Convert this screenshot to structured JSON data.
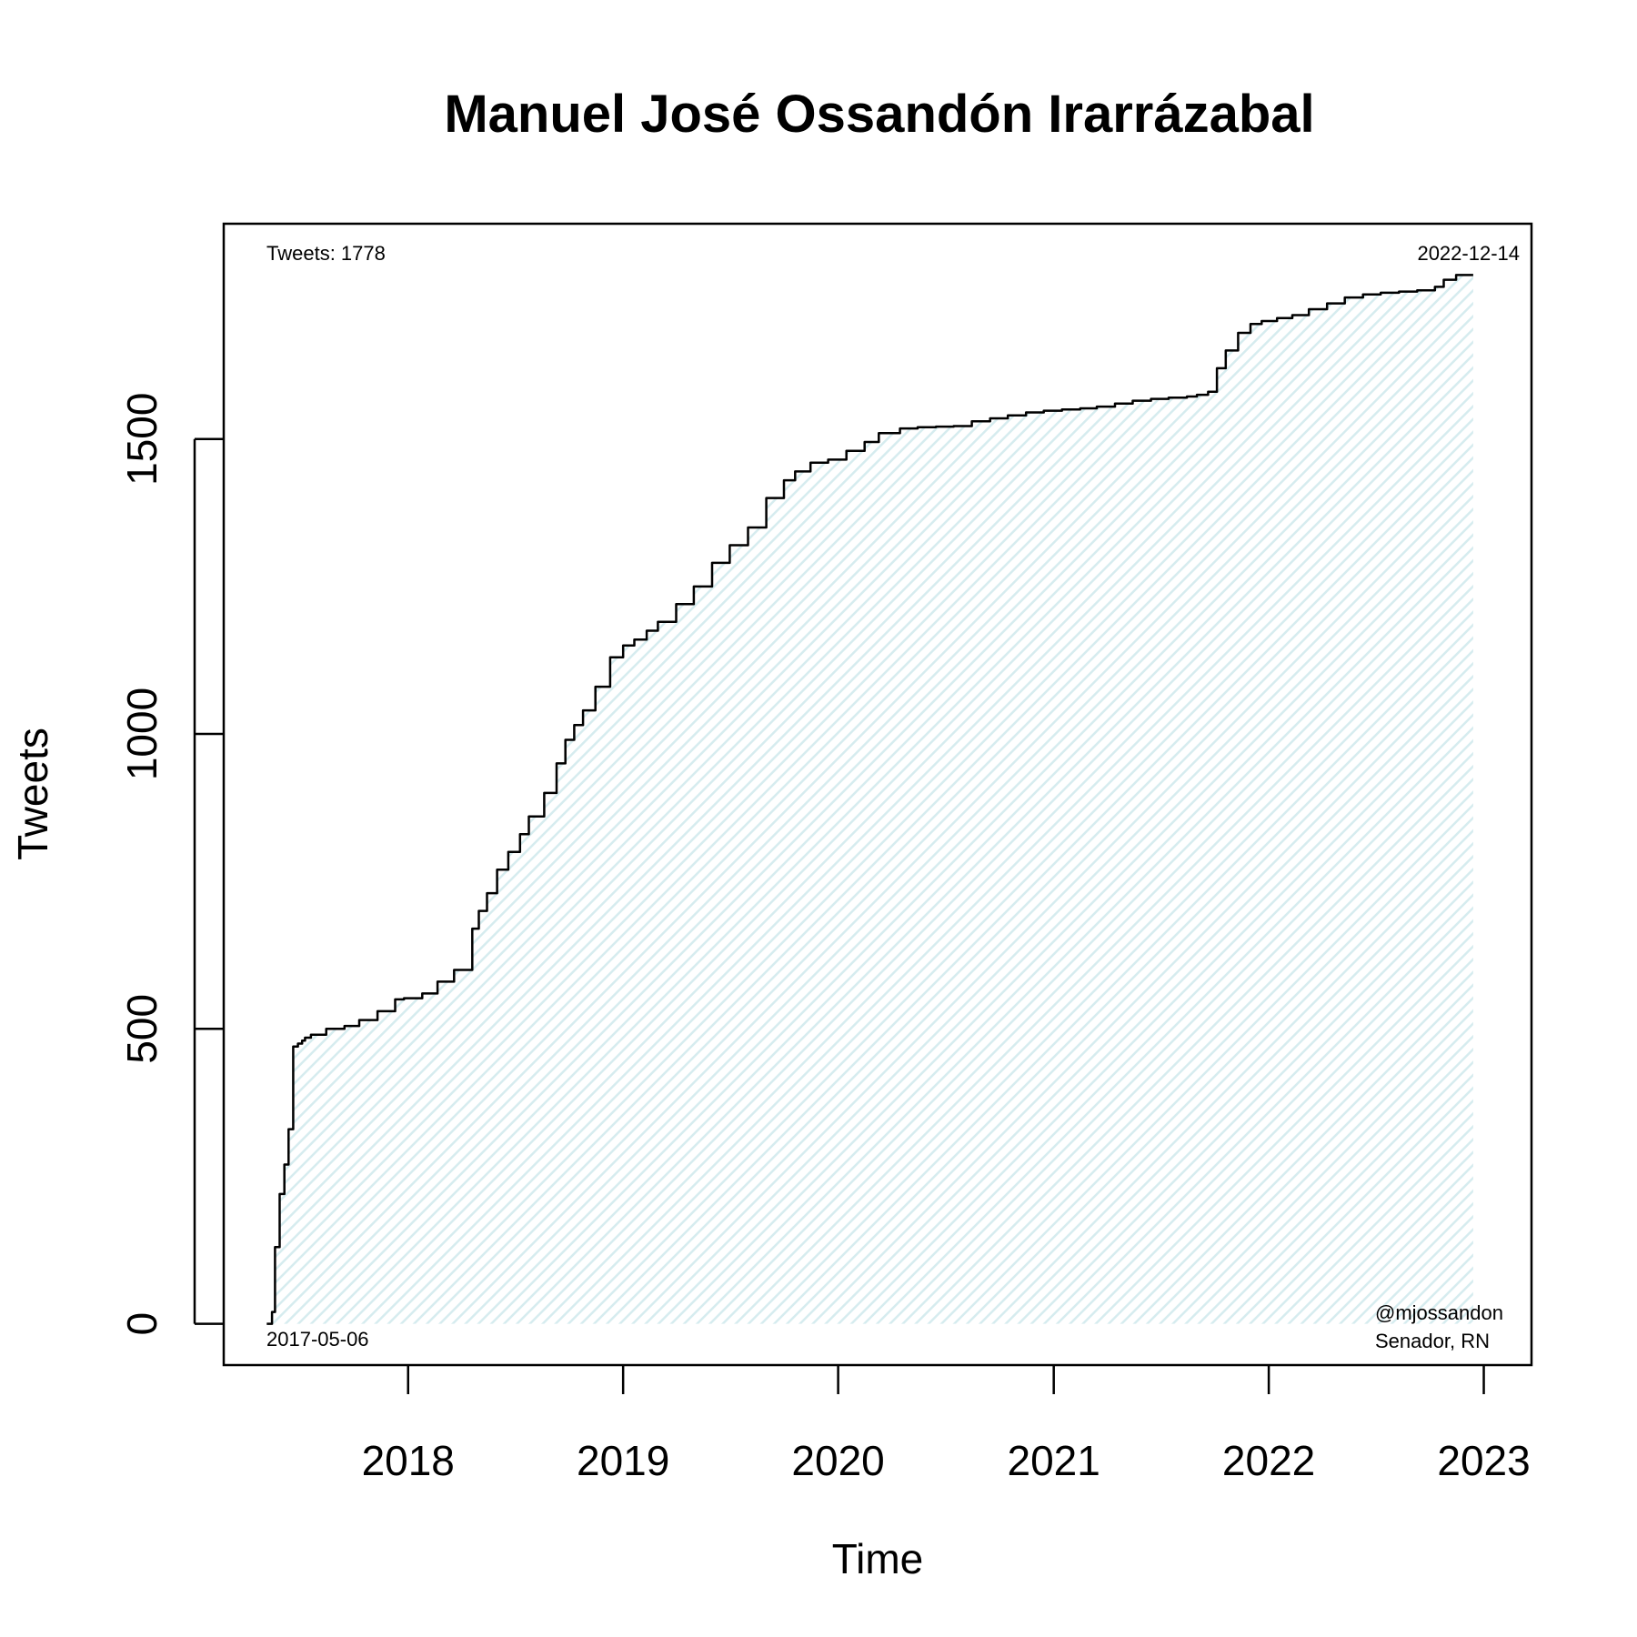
{
  "chart_data": {
    "type": "area",
    "title": "Manuel José Ossandón Irarrázabal",
    "xlabel": "Time",
    "ylabel": "Tweets",
    "xlim": [
      "2017-02-22",
      "2023-03-23"
    ],
    "ylim": [
      -70,
      1865
    ],
    "x_ticks": [
      "2018-01-01",
      "2019-01-01",
      "2020-01-01",
      "2021-01-01",
      "2022-01-01",
      "2023-01-01"
    ],
    "x_tick_labels": [
      "2018",
      "2019",
      "2020",
      "2021",
      "2022",
      "2023"
    ],
    "y_ticks": [
      0,
      500,
      1000,
      1500
    ],
    "y_tick_labels": [
      "0",
      "500",
      "1000",
      "1500"
    ],
    "annotations": {
      "total": "Tweets: 1778",
      "start_date": "2017-05-06",
      "end_date": "2022-12-14",
      "handle": "@mjossandon",
      "affiliation": "Senador, RN"
    },
    "colors": {
      "line": "#000000",
      "fill": "#e6f3f5"
    },
    "grid": false,
    "series": [
      {
        "x": [
          "2017-05-06",
          "2017-05-15",
          "2017-05-20",
          "2017-05-28",
          "2017-06-05",
          "2017-06-12",
          "2017-06-20",
          "2017-06-28",
          "2017-07-05",
          "2017-07-10",
          "2017-07-20",
          "2017-08-15",
          "2017-09-15",
          "2017-10-10",
          "2017-11-10",
          "2017-12-10",
          "2017-12-25",
          "2018-01-25",
          "2018-02-20",
          "2018-03-20",
          "2018-04-20",
          "2018-05-01",
          "2018-05-15",
          "2018-06-01",
          "2018-06-20",
          "2018-07-10",
          "2018-07-25",
          "2018-08-20",
          "2018-09-10",
          "2018-09-25",
          "2018-10-10",
          "2018-10-25",
          "2018-11-15",
          "2018-12-10",
          "2019-01-01",
          "2019-01-20",
          "2019-02-10",
          "2019-03-01",
          "2019-04-01",
          "2019-05-01",
          "2019-06-01",
          "2019-07-01",
          "2019-08-01",
          "2019-09-01",
          "2019-10-01",
          "2019-10-20",
          "2019-11-15",
          "2019-12-15",
          "2020-01-15",
          "2020-02-15",
          "2020-03-10",
          "2020-04-15",
          "2020-05-15",
          "2020-06-15",
          "2020-07-15",
          "2020-08-15",
          "2020-09-15",
          "2020-10-15",
          "2020-11-15",
          "2020-12-15",
          "2021-01-15",
          "2021-02-15",
          "2021-03-15",
          "2021-04-15",
          "2021-05-15",
          "2021-06-15",
          "2021-07-15",
          "2021-08-15",
          "2021-09-01",
          "2021-09-20",
          "2021-10-05",
          "2021-10-20",
          "2021-11-10",
          "2021-12-01",
          "2021-12-20",
          "2022-01-15",
          "2022-02-10",
          "2022-03-10",
          "2022-04-10",
          "2022-05-10",
          "2022-06-10",
          "2022-07-10",
          "2022-08-10",
          "2022-09-10",
          "2022-10-10",
          "2022-10-25",
          "2022-11-15",
          "2022-12-14"
        ],
        "values": [
          0,
          20,
          130,
          220,
          270,
          330,
          470,
          475,
          480,
          485,
          490,
          500,
          505,
          515,
          530,
          550,
          552,
          560,
          580,
          600,
          670,
          700,
          730,
          770,
          800,
          830,
          860,
          900,
          950,
          990,
          1015,
          1040,
          1080,
          1130,
          1150,
          1160,
          1175,
          1190,
          1220,
          1250,
          1290,
          1320,
          1350,
          1400,
          1430,
          1445,
          1460,
          1465,
          1480,
          1495,
          1510,
          1518,
          1520,
          1521,
          1522,
          1530,
          1535,
          1540,
          1545,
          1548,
          1550,
          1552,
          1555,
          1560,
          1565,
          1568,
          1570,
          1572,
          1575,
          1580,
          1620,
          1650,
          1680,
          1695,
          1700,
          1705,
          1710,
          1720,
          1730,
          1740,
          1745,
          1748,
          1750,
          1752,
          1758,
          1770,
          1778,
          1778
        ]
      }
    ]
  }
}
